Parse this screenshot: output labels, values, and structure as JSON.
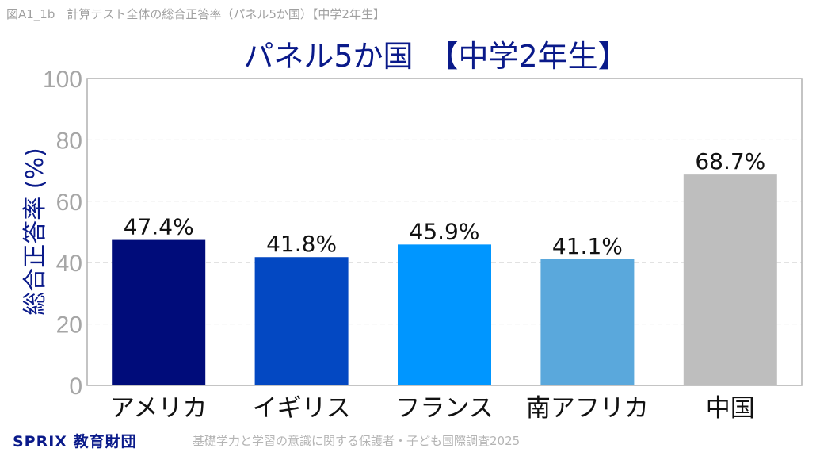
{
  "figure_code": "図A1_1b　計算テスト全体の総合正答率（パネル5か国）【中学2年生】",
  "footer": {
    "logo_main": "SPRIX",
    "logo_sub": "教育財団",
    "source": "基礎学力と学習の意識に関する保護者・子ども国際調査2025"
  },
  "colors": {
    "axis": "#b0b0b0",
    "grid": "#d9d9d9",
    "tick_text": "#a6a6a6",
    "title": "#0a1a8a"
  },
  "chart_data": {
    "type": "bar",
    "title": "パネル5か国　【中学2年生】",
    "ylabel": "総合正答率 (%)",
    "xlabel": "",
    "ylim": [
      0,
      100
    ],
    "yticks": [
      0,
      20,
      40,
      60,
      80,
      100
    ],
    "grid": true,
    "categories": [
      "アメリカ",
      "イギリス",
      "フランス",
      "南アフリカ",
      "中国"
    ],
    "values": [
      47.4,
      41.8,
      45.9,
      41.1,
      68.7
    ],
    "data_labels": [
      "47.4%",
      "41.8%",
      "45.9%",
      "41.1%",
      "68.7%"
    ],
    "bar_colors": [
      "#000c7a",
      "#0348c2",
      "#0096ff",
      "#5aa8dc",
      "#bebebe"
    ]
  }
}
